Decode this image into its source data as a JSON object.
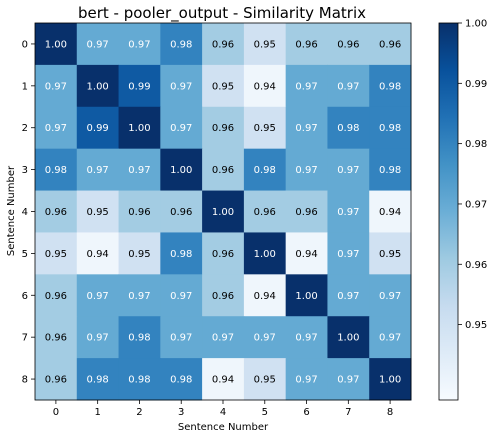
{
  "chart_data": {
    "type": "heatmap",
    "title": "bert - pooler_output - Similarity Matrix",
    "xlabel": "Sentence Number",
    "ylabel": "Sentence Number",
    "x_categories": [
      "0",
      "1",
      "2",
      "3",
      "4",
      "5",
      "6",
      "7",
      "8"
    ],
    "y_categories": [
      "0",
      "1",
      "2",
      "3",
      "4",
      "5",
      "6",
      "7",
      "8"
    ],
    "values": [
      [
        1.0,
        0.97,
        0.97,
        0.98,
        0.96,
        0.95,
        0.96,
        0.96,
        0.96
      ],
      [
        0.97,
        1.0,
        0.99,
        0.97,
        0.95,
        0.94,
        0.97,
        0.97,
        0.98
      ],
      [
        0.97,
        0.99,
        1.0,
        0.97,
        0.96,
        0.95,
        0.97,
        0.98,
        0.98
      ],
      [
        0.98,
        0.97,
        0.97,
        1.0,
        0.96,
        0.98,
        0.97,
        0.97,
        0.98
      ],
      [
        0.96,
        0.95,
        0.96,
        0.96,
        1.0,
        0.96,
        0.96,
        0.97,
        0.94
      ],
      [
        0.95,
        0.94,
        0.95,
        0.98,
        0.96,
        1.0,
        0.94,
        0.97,
        0.95
      ],
      [
        0.96,
        0.97,
        0.97,
        0.97,
        0.96,
        0.94,
        1.0,
        0.97,
        0.97
      ],
      [
        0.96,
        0.97,
        0.98,
        0.97,
        0.97,
        0.97,
        0.97,
        1.0,
        0.97
      ],
      [
        0.96,
        0.98,
        0.98,
        0.98,
        0.94,
        0.95,
        0.97,
        0.97,
        1.0
      ]
    ],
    "labels": [
      [
        "1.00",
        "0.97",
        "0.97",
        "0.98",
        "0.96",
        "0.95",
        "0.96",
        "0.96",
        "0.96"
      ],
      [
        "0.97",
        "1.00",
        "0.99",
        "0.97",
        "0.95",
        "0.94",
        "0.97",
        "0.97",
        "0.98"
      ],
      [
        "0.97",
        "0.99",
        "1.00",
        "0.97",
        "0.96",
        "0.95",
        "0.97",
        "0.98",
        "0.98"
      ],
      [
        "0.98",
        "0.97",
        "0.97",
        "1.00",
        "0.96",
        "0.98",
        "0.97",
        "0.97",
        "0.98"
      ],
      [
        "0.96",
        "0.95",
        "0.96",
        "0.96",
        "1.00",
        "0.96",
        "0.96",
        "0.97",
        "0.94"
      ],
      [
        "0.95",
        "0.94",
        "0.95",
        "0.98",
        "0.96",
        "1.00",
        "0.94",
        "0.97",
        "0.95"
      ],
      [
        "0.96",
        "0.97",
        "0.97",
        "0.97",
        "0.96",
        "0.94",
        "1.00",
        "0.97",
        "0.97"
      ],
      [
        "0.96",
        "0.97",
        "0.98",
        "0.97",
        "0.97",
        "0.97",
        "0.97",
        "1.00",
        "0.97"
      ],
      [
        "0.96",
        "0.98",
        "0.98",
        "0.98",
        "0.94",
        "0.95",
        "0.97",
        "0.97",
        "1.00"
      ]
    ],
    "color_range": [
      0.9375,
      1.0
    ],
    "colormap": "Blues",
    "colorbar_ticks": [
      0.95,
      0.96,
      0.97,
      0.98,
      0.99,
      1.0
    ],
    "colorbar_tick_labels": [
      "0.95",
      "0.96",
      "0.97",
      "0.98",
      "0.99",
      "1.00"
    ],
    "grid": false
  }
}
